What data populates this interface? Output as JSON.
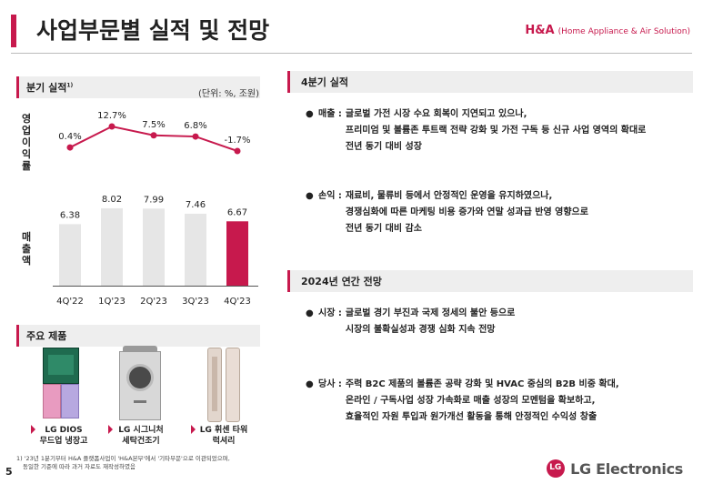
{
  "header": {
    "title": "사업부문별 실적 및 전망",
    "division": "H&A",
    "division_sub": "(Home Appliance & Air Solution)"
  },
  "left": {
    "quarterly_title": "분기 실적",
    "quarterly_sup": "1)",
    "unit": "(단위: %, 조원)",
    "op_margin_label": [
      "영",
      "업",
      "이",
      "익",
      "률"
    ],
    "sales_label": [
      "매",
      "출",
      "액"
    ],
    "products_title": "주요 제품",
    "products": [
      {
        "name_line1": "LG DIOS",
        "name_line2": "무드업 냉장고"
      },
      {
        "name_line1": "LG 시그니처",
        "name_line2": "세탁건조기"
      },
      {
        "name_line1": "LG 휘센 타워",
        "name_line2": "럭셔리"
      }
    ],
    "footnote_line1": "1) '23년 1분기부터 H&A 플랫폼사업이 'H&A본부'에서 '기타부문'으로 이관되었으며,",
    "footnote_line2": "동일한 기준에 따라 과거 자료도 재작성하였음",
    "page_number": "5"
  },
  "chart_data": {
    "type": "bar+line",
    "categories": [
      "4Q'22",
      "1Q'23",
      "2Q'23",
      "3Q'23",
      "4Q'23"
    ],
    "sales_values": [
      6.38,
      8.02,
      7.99,
      7.46,
      6.67
    ],
    "sales_labels": [
      "6.38",
      "8.02",
      "7.99",
      "7.46",
      "6.67"
    ],
    "op_margin_values": [
      0.4,
      12.7,
      7.5,
      6.8,
      -1.7
    ],
    "op_margin_labels": [
      "0.4%",
      "12.7%",
      "7.5%",
      "6.8%",
      "-1.7%"
    ],
    "highlight_index": 4,
    "colors": {
      "bar": "#e6e6e6",
      "bar_highlight": "#c7194d",
      "line": "#c7194d"
    }
  },
  "right": {
    "q4_title": "4분기 실적",
    "q4_bullets": [
      {
        "key": "매출",
        "lines": [
          "글로벌 가전 시장 수요 회복이 지연되고 있으나,",
          "프리미엄 및 볼륨존 투트랙 전략 강화 및 가전 구독 등 신규 사업 영역의 확대로",
          "전년 동기 대비 성장"
        ]
      },
      {
        "key": "손익",
        "lines": [
          "재료비, 물류비 등에서 안정적인 운영을 유지하였으나,",
          "경쟁심화에 따른 마케팅 비용 증가와 연말 성과급 반영 영향으로",
          "전년 동기 대비 감소"
        ]
      }
    ],
    "outlook_title": "2024년 연간 전망",
    "outlook_bullets": [
      {
        "key": "시장",
        "lines": [
          "글로벌 경기 부진과 국제 정세의 불안 등으로",
          "시장의 불확실성과 경쟁 심화 지속 전망"
        ]
      },
      {
        "key": "당사",
        "lines": [
          "주력 B2C 제품의 볼륨존 공략 강화 및 HVAC 중심의 B2B 비중 확대,",
          "온라인 / 구독사업 성장 가속화로 매출 성장의 모멘텀을 확보하고,",
          "효율적인 자원 투입과 원가개선 활동을 통해 안정적인 수익성 창출"
        ]
      }
    ]
  },
  "logo": {
    "text": "LG Electronics",
    "mark": "LG"
  }
}
